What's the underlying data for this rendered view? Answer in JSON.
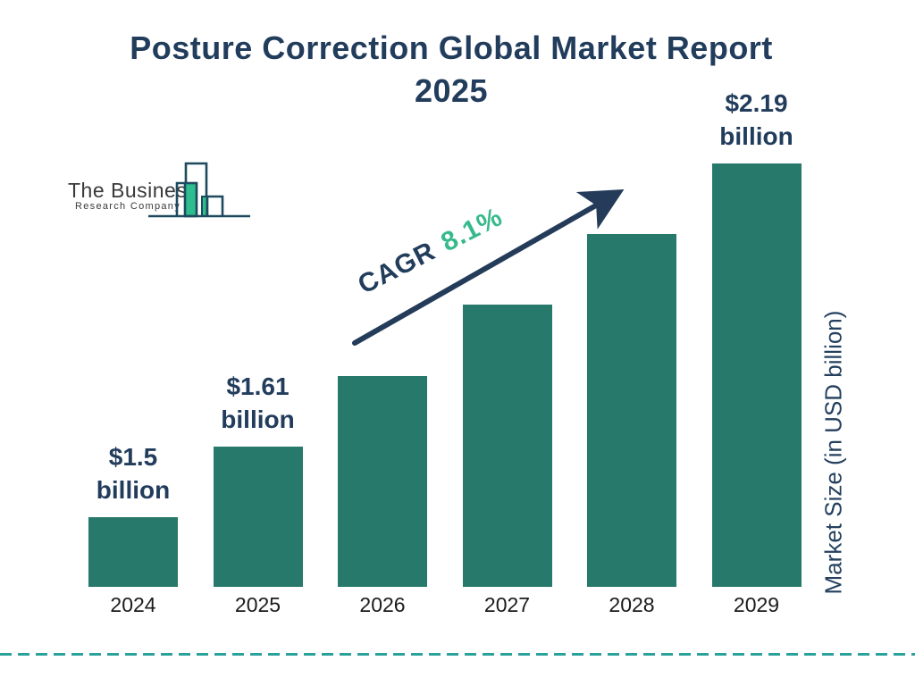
{
  "title": {
    "line1": "Posture Correction Global Market Report",
    "line2": "2025"
  },
  "logo": {
    "name": "The Business",
    "subname": "Research Company",
    "icon": "bar-chart-skyline-icon"
  },
  "annotation": {
    "label": "CAGR",
    "value": "8.1%"
  },
  "y_axis_label": "Market Size (in USD billion)",
  "colors": {
    "bar": "#27796b",
    "navy": "#223c5c",
    "cagr_green": "#36ba8c",
    "arrow": "#243c59",
    "dashed_line": "#2ba19c",
    "logo_outline": "#1d4a5e",
    "logo_green": "#2ebd8e",
    "x_label": "#1b1b1b"
  },
  "chart_data": {
    "type": "bar",
    "title": "Posture Correction Global Market Report 2025",
    "categories": [
      "2024",
      "2025",
      "2026",
      "2027",
      "2028",
      "2029"
    ],
    "values": [
      1.5,
      1.61,
      1.74,
      1.88,
      2.03,
      2.19
    ],
    "unit": "USD billion",
    "bar_labels": [
      "$1.5 billion",
      "$1.61 billion",
      null,
      null,
      null,
      "$2.19 billion"
    ],
    "cagr": "8.1%",
    "xlabel": "",
    "ylabel": "Market Size (in USD billion)",
    "legend": false,
    "grid": false,
    "axis_lines": false
  }
}
